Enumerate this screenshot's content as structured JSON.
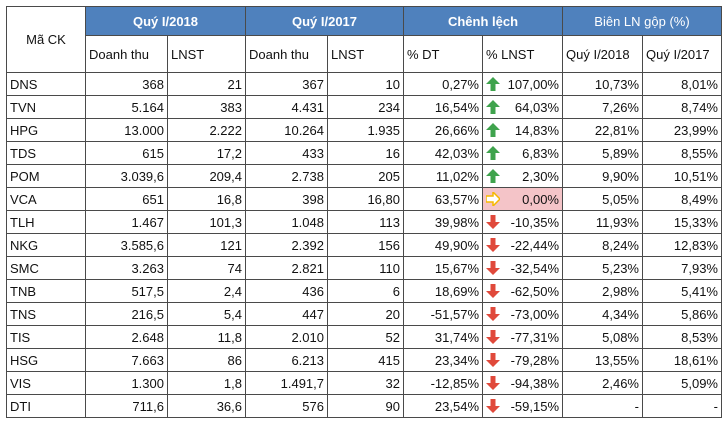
{
  "headers": {
    "ma_ck": "Mã CK",
    "q1_2018": "Quý I/2018",
    "q1_2017": "Quý I/2017",
    "chenh_lech": "Chênh lệch",
    "bien_ln": "Biên LN gộp (%)",
    "doanh_thu": "Doanh thu",
    "lnst": "LNST",
    "pct_dt": "% DT",
    "pct_lnst": "% LNST",
    "bien_q1_2018": "Quý I/2018",
    "bien_q1_2017": "Quý I/2017"
  },
  "colors": {
    "header_blue": "#4f81bd",
    "up": "#3fa34d",
    "down": "#e0493b",
    "flat": "#f5b800",
    "highlight": "#f4c4c8"
  },
  "rows": [
    {
      "code": "DNS",
      "dt18": "368",
      "ln18": "21",
      "dt17": "367",
      "ln17": "10",
      "pdt": "0,27%",
      "dir": "up",
      "plnst": "107,00%",
      "b18": "10,73%",
      "b17": "8,01%"
    },
    {
      "code": "TVN",
      "dt18": "5.164",
      "ln18": "383",
      "dt17": "4.431",
      "ln17": "234",
      "pdt": "16,54%",
      "dir": "up",
      "plnst": "64,03%",
      "b18": "7,26%",
      "b17": "8,74%"
    },
    {
      "code": "HPG",
      "dt18": "13.000",
      "ln18": "2.222",
      "dt17": "10.264",
      "ln17": "1.935",
      "pdt": "26,66%",
      "dir": "up",
      "plnst": "14,83%",
      "b18": "22,81%",
      "b17": "23,99%"
    },
    {
      "code": "TDS",
      "dt18": "615",
      "ln18": "17,2",
      "dt17": "433",
      "ln17": "16",
      "pdt": "42,03%",
      "dir": "up",
      "plnst": "6,83%",
      "b18": "5,89%",
      "b17": "8,55%"
    },
    {
      "code": "POM",
      "dt18": "3.039,6",
      "ln18": "209,4",
      "dt17": "2.738",
      "ln17": "205",
      "pdt": "11,02%",
      "dir": "up",
      "plnst": "2,30%",
      "b18": "9,90%",
      "b17": "10,51%"
    },
    {
      "code": "VCA",
      "dt18": "651",
      "ln18": "16,8",
      "dt17": "398",
      "ln17": "16,80",
      "pdt": "63,57%",
      "dir": "flat",
      "plnst": "0,00%",
      "b18": "5,05%",
      "b17": "8,49%",
      "hl": true
    },
    {
      "code": "TLH",
      "dt18": "1.467",
      "ln18": "101,3",
      "dt17": "1.048",
      "ln17": "113",
      "pdt": "39,98%",
      "dir": "down",
      "plnst": "-10,35%",
      "b18": "11,93%",
      "b17": "15,33%"
    },
    {
      "code": "NKG",
      "dt18": "3.585,6",
      "ln18": "121",
      "dt17": "2.392",
      "ln17": "156",
      "pdt": "49,90%",
      "dir": "down",
      "plnst": "-22,44%",
      "b18": "8,24%",
      "b17": "12,83%"
    },
    {
      "code": "SMC",
      "dt18": "3.263",
      "ln18": "74",
      "dt17": "2.821",
      "ln17": "110",
      "pdt": "15,67%",
      "dir": "down",
      "plnst": "-32,54%",
      "b18": "5,23%",
      "b17": "7,93%"
    },
    {
      "code": "TNB",
      "dt18": "517,5",
      "ln18": "2,4",
      "dt17": "436",
      "ln17": "6",
      "pdt": "18,69%",
      "dir": "down",
      "plnst": "-62,50%",
      "b18": "2,98%",
      "b17": "5,41%"
    },
    {
      "code": "TNS",
      "dt18": "216,5",
      "ln18": "5,4",
      "dt17": "447",
      "ln17": "20",
      "pdt": "-51,57%",
      "dir": "down",
      "plnst": "-73,00%",
      "b18": "4,34%",
      "b17": "5,86%"
    },
    {
      "code": "TIS",
      "dt18": "2.648",
      "ln18": "11,8",
      "dt17": "2.010",
      "ln17": "52",
      "pdt": "31,74%",
      "dir": "down",
      "plnst": "-77,31%",
      "b18": "5,08%",
      "b17": "8,53%"
    },
    {
      "code": "HSG",
      "dt18": "7.663",
      "ln18": "86",
      "dt17": "6.213",
      "ln17": "415",
      "pdt": "23,34%",
      "dir": "down",
      "plnst": "-79,28%",
      "b18": "13,55%",
      "b17": "18,61%"
    },
    {
      "code": "VIS",
      "dt18": "1.300",
      "ln18": "1,8",
      "dt17": "1.491,7",
      "ln17": "32",
      "pdt": "-12,85%",
      "dir": "down",
      "plnst": "-94,38%",
      "b18": "2,46%",
      "b17": "5,09%"
    },
    {
      "code": "DTI",
      "dt18": "711,6",
      "ln18": "36,6",
      "dt17": "576",
      "ln17": "90",
      "pdt": "23,54%",
      "dir": "down",
      "plnst": "-59,15%",
      "b18": "-",
      "b17": "-"
    }
  ]
}
